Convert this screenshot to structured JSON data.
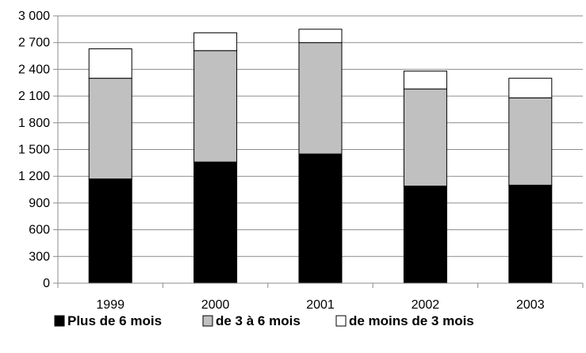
{
  "chart_data": {
    "type": "bar",
    "stacked": true,
    "title": "",
    "xlabel": "",
    "ylabel": "",
    "categories": [
      "1999",
      "2000",
      "2001",
      "2002",
      "2003"
    ],
    "ylim": [
      0,
      3000
    ],
    "yticks": [
      0,
      300,
      600,
      900,
      1200,
      1500,
      1800,
      2100,
      2400,
      2700,
      3000
    ],
    "ytick_labels": [
      "0",
      "300",
      "600",
      "900",
      "1 200",
      "1 500",
      "1 800",
      "2 100",
      "2 400",
      "2 700",
      "3 000"
    ],
    "grid": true,
    "legend_position": "bottom",
    "series": [
      {
        "name": "Plus de 6 mois",
        "values": [
          1170,
          1360,
          1450,
          1090,
          1100
        ],
        "color": "#000000"
      },
      {
        "name": "de 3 à 6 mois",
        "values": [
          1130,
          1250,
          1250,
          1090,
          980
        ],
        "color": "#c0c0c0"
      },
      {
        "name": "de moins de 3 mois",
        "values": [
          330,
          200,
          150,
          200,
          220
        ],
        "color": "#ffffff"
      }
    ]
  }
}
